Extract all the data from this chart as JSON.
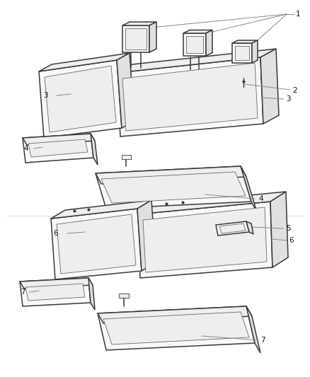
{
  "background_color": "#ffffff",
  "line_color": "#3a3a3a",
  "inner_line_color": "#666666",
  "leader_color": "#888888",
  "fill_light": "#f8f8f8",
  "fill_medium": "#eeeeee",
  "fill_dark": "#e0e0e0",
  "lw_outer": 1.1,
  "lw_inner": 0.6,
  "lw_leader": 0.7,
  "fontsize": 7.5,
  "fig_width": 4.38,
  "fig_height": 5.33,
  "dpi": 100
}
